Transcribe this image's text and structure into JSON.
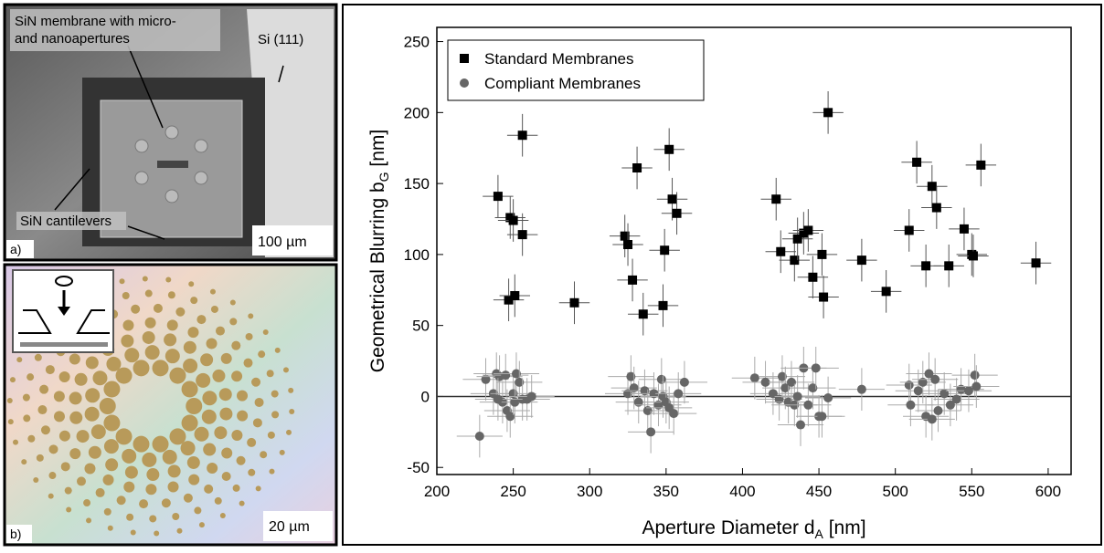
{
  "panels": {
    "a": {
      "tag": "a)",
      "membrane": [
        "SiN membrane with micro-",
        "and nanoapertures"
      ],
      "substrate": "Si (111)",
      "cantilevers": "SiN cantilevers",
      "scale": "100 µm"
    },
    "b": {
      "tag": "b)",
      "scale": "20 µm"
    }
  },
  "chart_data": {
    "type": "scatter",
    "xlabel": [
      "Aperture Diameter d",
      "A",
      " [nm]"
    ],
    "ylabel": [
      "Geometrical Blurring b",
      "G",
      " [nm]"
    ],
    "xlim": [
      200,
      615
    ],
    "ylim": [
      -55,
      260
    ],
    "xticks": [
      200,
      250,
      300,
      350,
      400,
      450,
      500,
      550,
      600
    ],
    "yticks": [
      -50,
      0,
      50,
      100,
      150,
      200,
      250
    ],
    "reference_line": 0,
    "legend": "top-left",
    "series": [
      {
        "name": "Standard Membranes",
        "color": "#000000",
        "marker": "square",
        "xerr": 10,
        "yerr": 15,
        "x": [
          240,
          248,
          250,
          256,
          256,
          247,
          251,
          290,
          323,
          325,
          328,
          331,
          335,
          348,
          349,
          352,
          354,
          357,
          422,
          425,
          434,
          436,
          440,
          443,
          446,
          452,
          453,
          456,
          478,
          494,
          509,
          514,
          520,
          524,
          527,
          535,
          545,
          550,
          551,
          556,
          592
        ],
        "values": [
          141,
          126,
          124,
          184,
          114,
          68,
          71,
          66,
          113,
          107,
          82,
          161,
          58,
          64,
          103,
          174,
          139,
          129,
          139,
          102,
          96,
          111,
          115,
          117,
          84,
          100,
          70,
          200,
          96,
          74,
          117,
          165,
          92,
          148,
          133,
          92,
          118,
          100,
          99,
          163,
          94
        ]
      },
      {
        "name": "Compliant Membranes",
        "color": "#666666",
        "marker": "circle",
        "xerr": 15,
        "yerr": 15,
        "x": [
          228,
          232,
          237,
          239,
          241,
          243,
          245,
          246,
          248,
          250,
          251,
          252,
          254,
          256,
          259,
          262,
          240,
          325,
          327,
          329,
          332,
          336,
          338,
          340,
          342,
          345,
          347,
          348,
          350,
          352,
          355,
          358,
          362,
          408,
          415,
          420,
          424,
          426,
          428,
          430,
          432,
          434,
          436,
          438,
          440,
          443,
          446,
          448,
          450,
          452,
          456,
          478,
          509,
          510,
          515,
          518,
          520,
          522,
          524,
          526,
          528,
          532,
          536,
          540,
          543,
          548,
          552,
          553
        ],
        "values": [
          -28,
          12,
          2,
          16,
          14,
          -4,
          15,
          -10,
          -14,
          2,
          -4,
          16,
          10,
          -2,
          -2,
          0,
          -2,
          2,
          14,
          6,
          -4,
          4,
          -10,
          -25,
          2,
          -6,
          12,
          0,
          -4,
          -8,
          -12,
          2,
          10,
          13,
          10,
          2,
          -2,
          14,
          6,
          -4,
          10,
          -6,
          0,
          -20,
          20,
          -6,
          6,
          20,
          -14,
          -14,
          -1,
          5,
          8,
          -6,
          4,
          10,
          -14,
          16,
          -16,
          12,
          -10,
          2,
          -6,
          -2,
          5,
          4,
          15,
          7
        ]
      }
    ]
  }
}
